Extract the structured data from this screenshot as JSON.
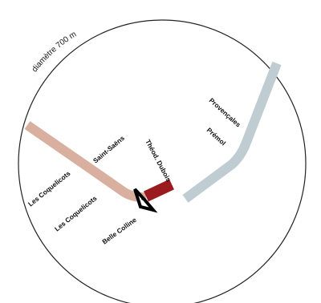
{
  "scale_label": "diamètre 700 m",
  "colors": {
    "circle": "#222222",
    "route_tan": "#d9b0a0",
    "route_blue": "#bfcdd3",
    "route_dark_red": "#9b1c20",
    "marker": "#000000",
    "marker_fill": "#ffffff"
  },
  "streets": {
    "les_coquelicots_1": "Les Coquelicots",
    "les_coquelicots_2": "Les Coquelicots",
    "saint_saens": "Saint-Saëns",
    "theod_dubois": "Théod. Dubois",
    "provencales": "Provençales",
    "premol": "Prémol",
    "belle_colline": "Belle Colline"
  }
}
